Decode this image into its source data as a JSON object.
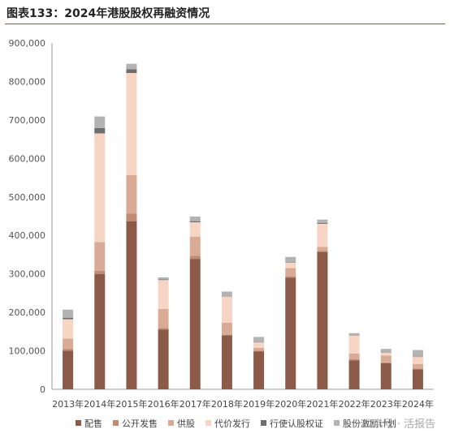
{
  "header": {
    "title": "图表133：2024年港股股权再融资情况"
  },
  "watermark": {
    "text": "公众号 · 活报告"
  },
  "colors": {
    "配售": "#8b5a49",
    "公开发售": "#c08a73",
    "供股": "#d9ab96",
    "代价发行": "#f7d5c5",
    "行使认股权证": "#6e6e6e",
    "股份激励计划": "#b3b3b3"
  },
  "chart_data": {
    "type": "bar",
    "stacked": true,
    "categories": [
      "2013年",
      "2014年",
      "2015年",
      "2016年",
      "2017年",
      "2018年",
      "2019年",
      "2020年",
      "2021年",
      "2022年",
      "2023年",
      "2024年"
    ],
    "series": [
      {
        "name": "配售",
        "values": [
          100000,
          300000,
          437000,
          155000,
          339000,
          140000,
          98000,
          290000,
          357000,
          75000,
          68000,
          52000
        ]
      },
      {
        "name": "公开发售",
        "values": [
          5000,
          8000,
          20000,
          4000,
          8000,
          2000,
          2000,
          3000,
          3000,
          3000,
          2000,
          2000
        ]
      },
      {
        "name": "供股",
        "values": [
          27000,
          75000,
          100000,
          50000,
          50000,
          31000,
          8000,
          22000,
          10000,
          15000,
          18000,
          12000
        ]
      },
      {
        "name": "代价发行",
        "values": [
          50000,
          282000,
          265000,
          75000,
          37000,
          68000,
          14000,
          14000,
          60000,
          47000,
          8000,
          18000
        ]
      },
      {
        "name": "行使认股权证",
        "values": [
          4000,
          14000,
          10000,
          2000,
          3000,
          1000,
          1000,
          1000,
          2000,
          1000,
          1000,
          1000
        ]
      },
      {
        "name": "股份激励计划",
        "values": [
          21000,
          30000,
          14000,
          5000,
          12000,
          12000,
          13000,
          14000,
          9000,
          5000,
          8000,
          17000
        ]
      }
    ],
    "ylim": [
      0,
      900000
    ],
    "yticks": [
      "0",
      "100,000",
      "200,000",
      "300,000",
      "400,000",
      "500,000",
      "600,000",
      "700,000",
      "800,000",
      "900,000"
    ],
    "grid": false,
    "legend_position": "bottom"
  }
}
